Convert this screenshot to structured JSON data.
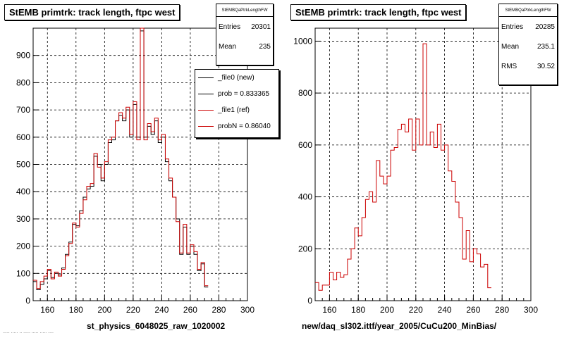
{
  "chart_data": [
    {
      "type": "histogram",
      "title": "StEMB primtrk: track length, ftpc west",
      "xlabel": "st_physics_6048025_raw_1020002",
      "ylabel": "",
      "xlim": [
        150,
        300
      ],
      "ylim": [
        0,
        1000
      ],
      "xticks": [
        160,
        180,
        200,
        220,
        240,
        260,
        280,
        300
      ],
      "yticks": [
        0,
        100,
        200,
        300,
        400,
        500,
        600,
        700,
        800,
        900
      ],
      "grid": true,
      "bin_edges_start": 150,
      "bin_width": 2.5,
      "stats": {
        "name": "StEMBQaPtrkLengthFW",
        "entries_label": "Entries",
        "entries": "20301",
        "mean_label": "Mean",
        "mean": "235"
      },
      "legend": {
        "placement": "top-right",
        "entries": [
          "_file0 (new)",
          "prob = 0.833365",
          "_file1 (ref)",
          "probN = 0.86040"
        ]
      },
      "series": [
        {
          "name": "_file0 (new)",
          "color": "#000000",
          "values": [
            70,
            40,
            60,
            80,
            110,
            85,
            100,
            95,
            120,
            170,
            215,
            280,
            275,
            330,
            380,
            410,
            420,
            530,
            500,
            440,
            500,
            580,
            590,
            660,
            680,
            660,
            700,
            600,
            720,
            600,
            990,
            600,
            640,
            610,
            660,
            580,
            600,
            510,
            440,
            380,
            300,
            170,
            270,
            170,
            200,
            170,
            110,
            135,
            50
          ]
        },
        {
          "name": "_file1 (ref)",
          "color": "#cc0000",
          "values": [
            75,
            45,
            70,
            90,
            115,
            80,
            105,
            90,
            115,
            165,
            210,
            285,
            270,
            320,
            370,
            420,
            430,
            540,
            490,
            450,
            510,
            590,
            600,
            660,
            690,
            670,
            710,
            610,
            730,
            590,
            1000,
            590,
            650,
            620,
            670,
            590,
            610,
            520,
            450,
            380,
            290,
            175,
            280,
            175,
            205,
            180,
            115,
            140,
            55
          ]
        }
      ]
    },
    {
      "type": "histogram",
      "title": "StEMB primtrk: track length, ftpc west",
      "xlabel": "new/daq_sl302.ittf/year_2005/CuCu200_MinBias/",
      "ylabel": "",
      "xlim": [
        150,
        300
      ],
      "ylim": [
        0,
        1050
      ],
      "xticks": [
        160,
        180,
        200,
        220,
        240,
        260,
        280,
        300
      ],
      "yticks": [
        0,
        200,
        400,
        600,
        800,
        1000
      ],
      "grid": true,
      "bin_edges_start": 150,
      "bin_width": 2.5,
      "stats": {
        "name": "StEMBQaPtrkLengthFW",
        "entries_label": "Entries",
        "entries": "20285",
        "mean_label": "Mean",
        "mean": "235.1",
        "rms_label": "RMS",
        "rms": "30.52"
      },
      "series": [
        {
          "name": "",
          "color": "#cc0000",
          "values": [
            70,
            40,
            60,
            60,
            110,
            80,
            110,
            90,
            100,
            160,
            200,
            280,
            250,
            320,
            390,
            420,
            380,
            540,
            480,
            450,
            480,
            580,
            590,
            660,
            680,
            650,
            700,
            580,
            700,
            600,
            990,
            600,
            650,
            590,
            680,
            580,
            600,
            500,
            460,
            380,
            320,
            160,
            270,
            150,
            200,
            180,
            130,
            140,
            50
          ]
        }
      ]
    }
  ],
  "footer": "..... ..... .. ..... ..... ..... ...."
}
